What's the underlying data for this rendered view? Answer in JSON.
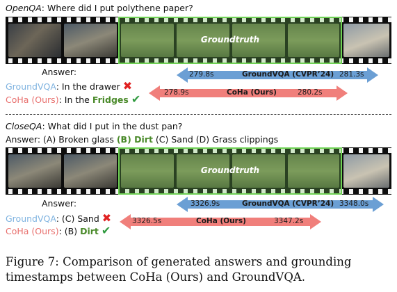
{
  "panel1": {
    "question_type": "OpenQA",
    "question": ": Where did I put polythene paper?",
    "gt_label": "Groundtruth",
    "answer_header": "Answer:",
    "groundvqa_name": "GroundVQA",
    "groundvqa_answer": ": In the drawer",
    "coha_name": "CoHa (Ours)",
    "coha_answer_prefix": ": In the ",
    "coha_answer_highlight": "Fridges",
    "arrow_groundvqa": {
      "start": "279.8s",
      "label": "GroundVQA (CVPR’24)",
      "end": "281.3s"
    },
    "arrow_coha": {
      "start": "278.9s",
      "label": "CoHa (Ours)",
      "end": "280.2s"
    }
  },
  "panel2": {
    "question_type": "CloseQA",
    "question": ": What did I put in the dust pan?",
    "options_prefix": "Answer: (A) Broken glass ",
    "options_highlight": "(B) Dirt",
    "options_suffix": " (C) Sand  (D) Grass clippings",
    "gt_label": "Groundtruth",
    "answer_header": "Answer:",
    "groundvqa_name": "GroundVQA",
    "groundvqa_answer": ": (C) Sand",
    "coha_name": "CoHa (Ours)",
    "coha_answer_prefix": ": (B) ",
    "coha_answer_highlight": "Dirt",
    "arrow_groundvqa": {
      "start": "3326.9s",
      "label": "GroundVQA (CVPR’24)",
      "end": "3348.0s"
    },
    "arrow_coha": {
      "start": "3326.5s",
      "label": "CoHa (Ours)",
      "end": "3347.2s"
    }
  },
  "marks": {
    "wrong": "✖",
    "right": "✔"
  },
  "colors": {
    "groundvqa": "#6b9fd4",
    "coha": "#f07f7b",
    "gt_border": "#6fd154"
  },
  "caption": "Figure 7: Comparison of generated answers and grounding timestamps between CoHa (Ours) and GroundVQA."
}
